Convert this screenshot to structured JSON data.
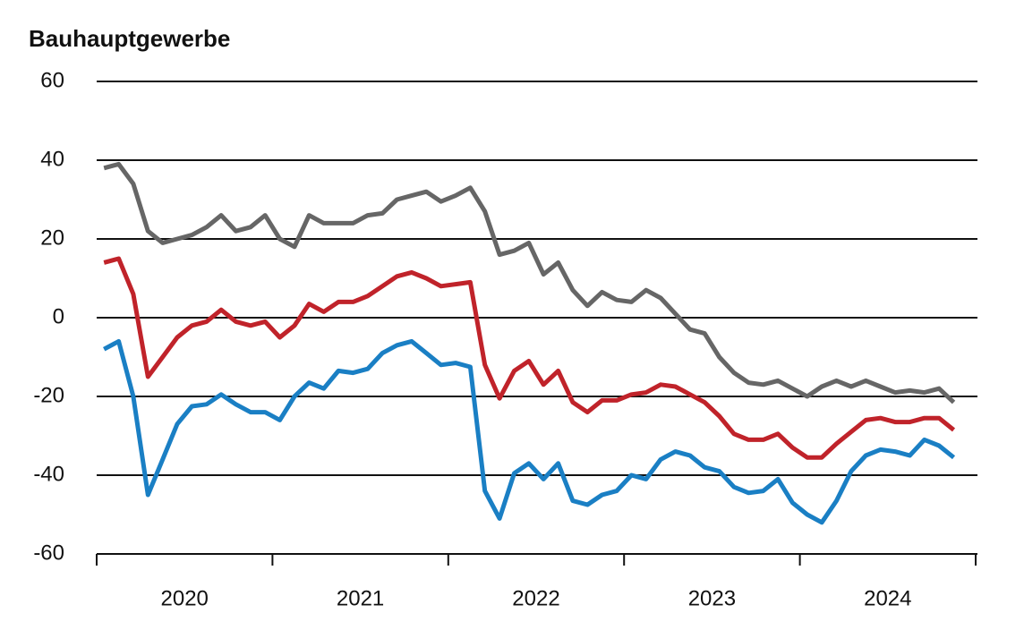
{
  "chart_data": {
    "type": "line",
    "title": "Bauhauptgewerbe",
    "categories": [
      null,
      null,
      null,
      null,
      null,
      null,
      "2020",
      null,
      null,
      null,
      null,
      null,
      null,
      null,
      null,
      null,
      null,
      null,
      "2021",
      null,
      null,
      null,
      null,
      null,
      null,
      null,
      null,
      null,
      null,
      null,
      "2022",
      null,
      null,
      null,
      null,
      null,
      null,
      null,
      null,
      null,
      null,
      null,
      "2023",
      null,
      null,
      null,
      null,
      null,
      null,
      null,
      null,
      null,
      null,
      null,
      "2024",
      null,
      null,
      null,
      null
    ],
    "series": [
      {
        "color": "#666666",
        "values": [
          38,
          39,
          34,
          22,
          19,
          20,
          21,
          23,
          26,
          22,
          23,
          26,
          20,
          18,
          26,
          24,
          24,
          24,
          26,
          26.5,
          30,
          31,
          32,
          29.5,
          31,
          33,
          27,
          16,
          17,
          19,
          11,
          14,
          7,
          3,
          6.5,
          4.5,
          4,
          7,
          5,
          1,
          -3,
          -4,
          -10,
          -14,
          -16.5,
          -17,
          -16,
          -18,
          -20,
          -17.5,
          -16,
          -17.5,
          -16,
          -17.5,
          -19,
          -18.5,
          -19,
          -18,
          -21.5
        ]
      },
      {
        "color": "#c0232a",
        "values": [
          14,
          15,
          6,
          -15,
          -10,
          -5,
          -2,
          -1,
          2,
          -1,
          -2,
          -1,
          -5,
          -2,
          3.5,
          1.5,
          4,
          4,
          5.5,
          8,
          10.5,
          11.5,
          10,
          8,
          8.5,
          9,
          -12,
          -20.5,
          -13.5,
          -11,
          -17,
          -13.5,
          -21.5,
          -24,
          -21,
          -21,
          -19.5,
          -19,
          -17,
          -17.5,
          -19.5,
          -21.5,
          -25,
          -29.5,
          -31,
          -31,
          -29.5,
          -33,
          -35.5,
          -35.5,
          -32,
          -29,
          -26,
          -25.5,
          -26.5,
          -26.5,
          -25.5,
          -25.5,
          -28.5
        ]
      },
      {
        "color": "#1a7fc4",
        "values": [
          -8,
          -6,
          -20,
          -45,
          -36,
          -27,
          -22.5,
          -22,
          -19.5,
          -22,
          -24,
          -24,
          -26,
          -20,
          -16.5,
          -18,
          -13.5,
          -14,
          -13,
          -9,
          -7,
          -6,
          -9,
          -12,
          -11.5,
          -12.5,
          -44,
          -51,
          -39.5,
          -37,
          -41,
          -37,
          -46.5,
          -47.5,
          -45,
          -44,
          -40,
          -41,
          -36,
          -34,
          -35,
          -38,
          -39,
          -43,
          -44.5,
          -44,
          -41,
          -47,
          -50,
          -52,
          -46.5,
          -39,
          -35,
          -33.5,
          -34,
          -35,
          -31,
          -32.5,
          -35.5
        ]
      }
    ],
    "ylim": [
      -60,
      60
    ],
    "yticks": [
      -60,
      -40,
      -20,
      0,
      20,
      40,
      60
    ],
    "grid": true
  }
}
